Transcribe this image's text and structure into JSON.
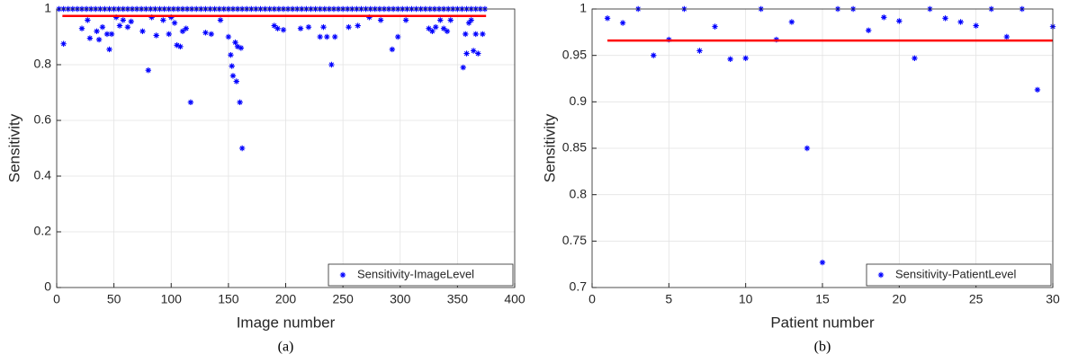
{
  "chart_data": [
    {
      "type": "scatter",
      "caption": "(a)",
      "xlabel": "Image number",
      "ylabel": "Sensitivity",
      "xlim": [
        0,
        400
      ],
      "xticks": [
        0,
        50,
        100,
        150,
        200,
        250,
        300,
        350,
        400
      ],
      "ylim": [
        0,
        1
      ],
      "yticks": [
        0,
        0.2,
        0.4,
        0.6,
        0.8,
        1
      ],
      "grid": true,
      "legend": "lower right",
      "series": [
        {
          "name": "Sensitivity-ImageLevel",
          "color": "#0000ff",
          "x": [
            2,
            6,
            10,
            14,
            18,
            22,
            26,
            30,
            34,
            38,
            42,
            46,
            50,
            54,
            58,
            62,
            66,
            70,
            74,
            78,
            82,
            86,
            90,
            94,
            98,
            102,
            106,
            110,
            114,
            118,
            122,
            126,
            130,
            134,
            138,
            142,
            146,
            150,
            154,
            158,
            162,
            166,
            170,
            174,
            178,
            182,
            186,
            190,
            194,
            198,
            202,
            206,
            210,
            214,
            218,
            222,
            226,
            230,
            234,
            238,
            242,
            246,
            250,
            254,
            258,
            262,
            266,
            270,
            274,
            278,
            282,
            286,
            290,
            294,
            298,
            302,
            306,
            310,
            314,
            318,
            322,
            326,
            330,
            334,
            338,
            342,
            346,
            350,
            354,
            358,
            362,
            366,
            370,
            374,
            6,
            22,
            27,
            29,
            35,
            37,
            40,
            44,
            46,
            48,
            52,
            55,
            58,
            62,
            65,
            75,
            80,
            83,
            87,
            93,
            98,
            100,
            103,
            105,
            108,
            110,
            113,
            117,
            130,
            135,
            143,
            150,
            152,
            153,
            154,
            156,
            157,
            158,
            160,
            162,
            161,
            190,
            193,
            198,
            213,
            220,
            230,
            233,
            236,
            240,
            243,
            255,
            263,
            273,
            283,
            293,
            298,
            305,
            325,
            328,
            331,
            335,
            338,
            341,
            344,
            355,
            357,
            358,
            360,
            362,
            364,
            366,
            368,
            372
          ],
          "values": [
            1,
            1,
            1,
            1,
            1,
            1,
            1,
            1,
            1,
            1,
            1,
            1,
            1,
            1,
            1,
            1,
            1,
            1,
            1,
            1,
            1,
            1,
            1,
            1,
            1,
            1,
            1,
            1,
            1,
            1,
            1,
            1,
            1,
            1,
            1,
            1,
            1,
            1,
            1,
            1,
            1,
            1,
            1,
            1,
            1,
            1,
            1,
            1,
            1,
            1,
            1,
            1,
            1,
            1,
            1,
            1,
            1,
            1,
            1,
            1,
            1,
            1,
            1,
            1,
            1,
            1,
            1,
            1,
            1,
            1,
            1,
            1,
            1,
            1,
            1,
            1,
            1,
            1,
            1,
            1,
            1,
            1,
            1,
            1,
            1,
            1,
            1,
            1,
            1,
            1,
            1,
            1,
            1,
            1,
            0.875,
            0.93,
            0.96,
            0.895,
            0.92,
            0.89,
            0.935,
            0.91,
            0.855,
            0.91,
            0.97,
            0.94,
            0.96,
            0.935,
            0.955,
            0.92,
            0.78,
            0.97,
            0.905,
            0.96,
            0.91,
            0.97,
            0.95,
            0.87,
            0.865,
            0.92,
            0.93,
            0.665,
            0.915,
            0.91,
            0.96,
            0.9,
            0.835,
            0.795,
            0.76,
            0.88,
            0.74,
            0.865,
            0.665,
            0.5,
            0.86,
            0.94,
            0.93,
            0.925,
            0.93,
            0.935,
            0.9,
            0.935,
            0.9,
            0.8,
            0.9,
            0.935,
            0.94,
            0.97,
            0.96,
            0.855,
            0.9,
            0.96,
            0.93,
            0.92,
            0.935,
            0.96,
            0.93,
            0.92,
            0.96,
            0.79,
            0.91,
            0.84,
            0.95,
            0.96,
            0.85,
            0.91,
            0.84,
            0.91
          ]
        }
      ],
      "mean_line": {
        "value": 0.975,
        "x": [
          5,
          375
        ],
        "color": "#ff0000"
      }
    },
    {
      "type": "scatter",
      "caption": "(b)",
      "xlabel": "Patient number",
      "ylabel": "Sensitivity",
      "xlim": [
        0,
        30
      ],
      "xticks": [
        0,
        5,
        10,
        15,
        20,
        25,
        30
      ],
      "ylim": [
        0.7,
        1
      ],
      "yticks": [
        0.7,
        0.75,
        0.8,
        0.85,
        0.9,
        0.95,
        1
      ],
      "grid": true,
      "legend": "lower right",
      "series": [
        {
          "name": "Sensitivity-PatientLevel",
          "color": "#0000ff",
          "x": [
            1,
            2,
            3,
            4,
            5,
            6,
            7,
            8,
            9,
            10,
            11,
            12,
            13,
            14,
            15,
            16,
            17,
            18,
            19,
            20,
            21,
            22,
            23,
            24,
            25,
            26,
            27,
            28,
            29,
            30
          ],
          "values": [
            0.99,
            0.985,
            1,
            0.95,
            0.967,
            1,
            0.955,
            0.981,
            0.946,
            0.947,
            1,
            0.967,
            0.986,
            0.85,
            0.727,
            1,
            1,
            0.977,
            0.991,
            0.987,
            0.947,
            1,
            0.99,
            0.986,
            0.982,
            1,
            0.97,
            1,
            0.913,
            0.981
          ]
        }
      ],
      "mean_line": {
        "value": 0.966,
        "x": [
          1,
          30
        ],
        "color": "#ff0000"
      }
    }
  ]
}
